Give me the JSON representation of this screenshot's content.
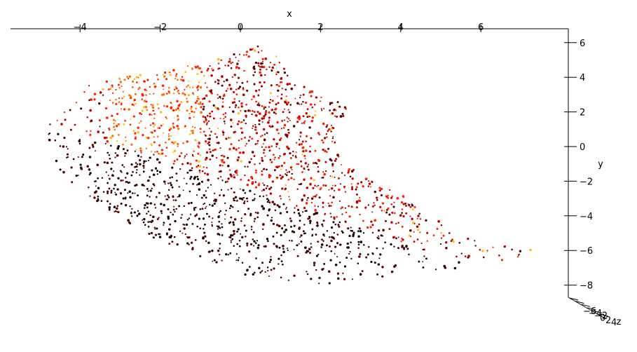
{
  "chart_data": {
    "type": "scatter",
    "projection": "3d",
    "title": "",
    "xlabel": "x",
    "ylabel": "y",
    "zlabel": "z",
    "xlim": [
      -5.2,
      8.7
    ],
    "ylim": [
      -8.6,
      6.7
    ],
    "x_ticks": [
      "−4",
      "−2",
      "0",
      "2",
      "4",
      "6"
    ],
    "y_ticks": [
      "−8",
      "−6",
      "−4",
      "−2",
      "0",
      "2",
      "4",
      "6"
    ],
    "z_ticks": [
      "−6",
      "−4",
      "−2",
      "0",
      "2",
      "4"
    ],
    "grid": false,
    "colormap": "hot",
    "colors": {
      "darkest": "#1a0000",
      "dark": "#5a0000",
      "mid": "#c00000",
      "bright": "#ff2000",
      "orange": "#ff7000",
      "yellow": "#ffc000"
    },
    "series": [
      {
        "values": [
          {
            "x": -5.0,
            "y": 1.5
          },
          {
            "x": -4.5,
            "y": 2.5
          },
          {
            "x": -4.0,
            "y": 3.5
          },
          {
            "x": -3.0,
            "y": 4.0
          },
          {
            "x": -2.0,
            "y": 4.3
          },
          {
            "x": -1.0,
            "y": 4.8
          },
          {
            "x": 0.0,
            "y": 5.5
          },
          {
            "x": 0.5,
            "y": 6.1
          },
          {
            "x": 1.0,
            "y": 5.0
          },
          {
            "x": 1.3,
            "y": 3.8
          },
          {
            "x": 2.0,
            "y": 3.0
          },
          {
            "x": 2.8,
            "y": 2.3
          },
          {
            "x": 2.3,
            "y": 1.0
          },
          {
            "x": 2.5,
            "y": -1.0
          },
          {
            "x": 3.5,
            "y": -2.0
          },
          {
            "x": 4.5,
            "y": -3.5
          },
          {
            "x": 5.5,
            "y": -5.0
          },
          {
            "x": 7.5,
            "y": -6.1
          },
          {
            "x": 6.0,
            "y": -6.8
          },
          {
            "x": 4.0,
            "y": -7.5
          },
          {
            "x": 2.0,
            "y": -8.0
          },
          {
            "x": 0.0,
            "y": -7.5
          },
          {
            "x": -2.0,
            "y": -5.5
          },
          {
            "x": -3.5,
            "y": -3.5
          },
          {
            "x": -4.5,
            "y": -1.5
          },
          {
            "x": -3.0,
            "y": 3.0
          },
          {
            "x": -2.5,
            "y": 1.0
          },
          {
            "x": -1.5,
            "y": 2.0
          },
          {
            "x": 0.0,
            "y": 0.0
          },
          {
            "x": 1.0,
            "y": -2.0
          },
          {
            "x": -0.5,
            "y": -3.5
          },
          {
            "x": 2.0,
            "y": -5.0
          },
          {
            "x": 3.0,
            "y": -6.0
          },
          {
            "x": 4.5,
            "y": -6.5
          }
        ]
      }
    ]
  }
}
